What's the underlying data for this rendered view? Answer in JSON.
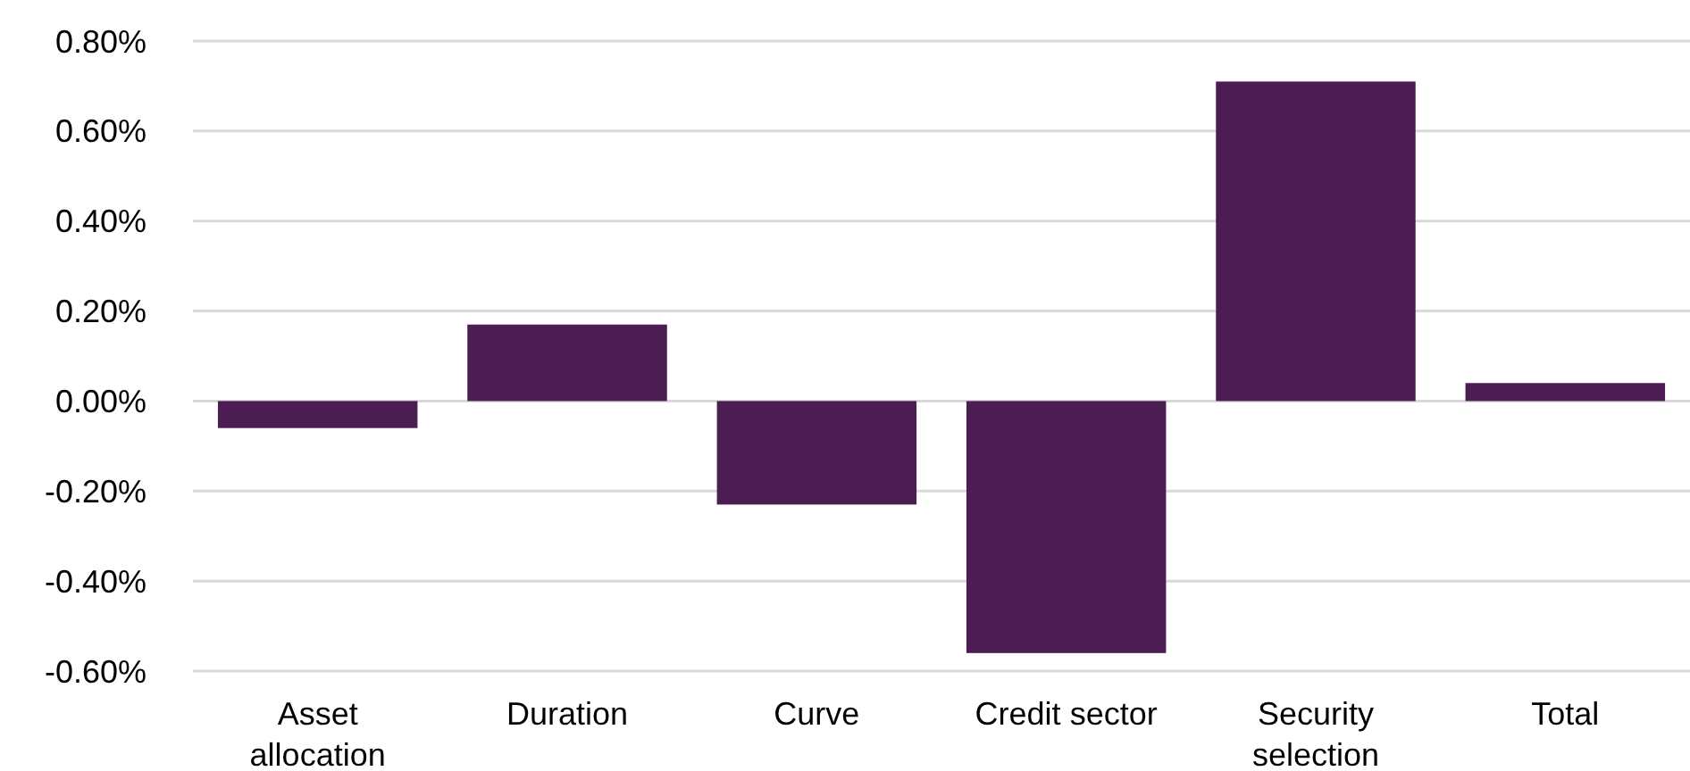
{
  "chart_data": {
    "type": "bar",
    "categories": [
      "Asset allocation",
      "Duration",
      "Curve",
      "Credit sector",
      "Security selection",
      "Total"
    ],
    "values": [
      -0.06,
      0.17,
      -0.23,
      -0.56,
      0.71,
      0.04
    ],
    "color": "#4b1d52",
    "ylim": [
      -0.6,
      0.8
    ],
    "yticks": [
      {
        "value": -0.6,
        "label": "-0.60%"
      },
      {
        "value": -0.4,
        "label": "-0.40%"
      },
      {
        "value": -0.2,
        "label": "-0.20%"
      },
      {
        "value": 0,
        "label": "0.00%"
      },
      {
        "value": 0.2,
        "label": "0.20%"
      },
      {
        "value": 0.4,
        "label": "0.40%"
      },
      {
        "value": 0.6,
        "label": "0.60%"
      },
      {
        "value": 0.8,
        "label": "0.80%"
      }
    ],
    "grid": "y"
  }
}
